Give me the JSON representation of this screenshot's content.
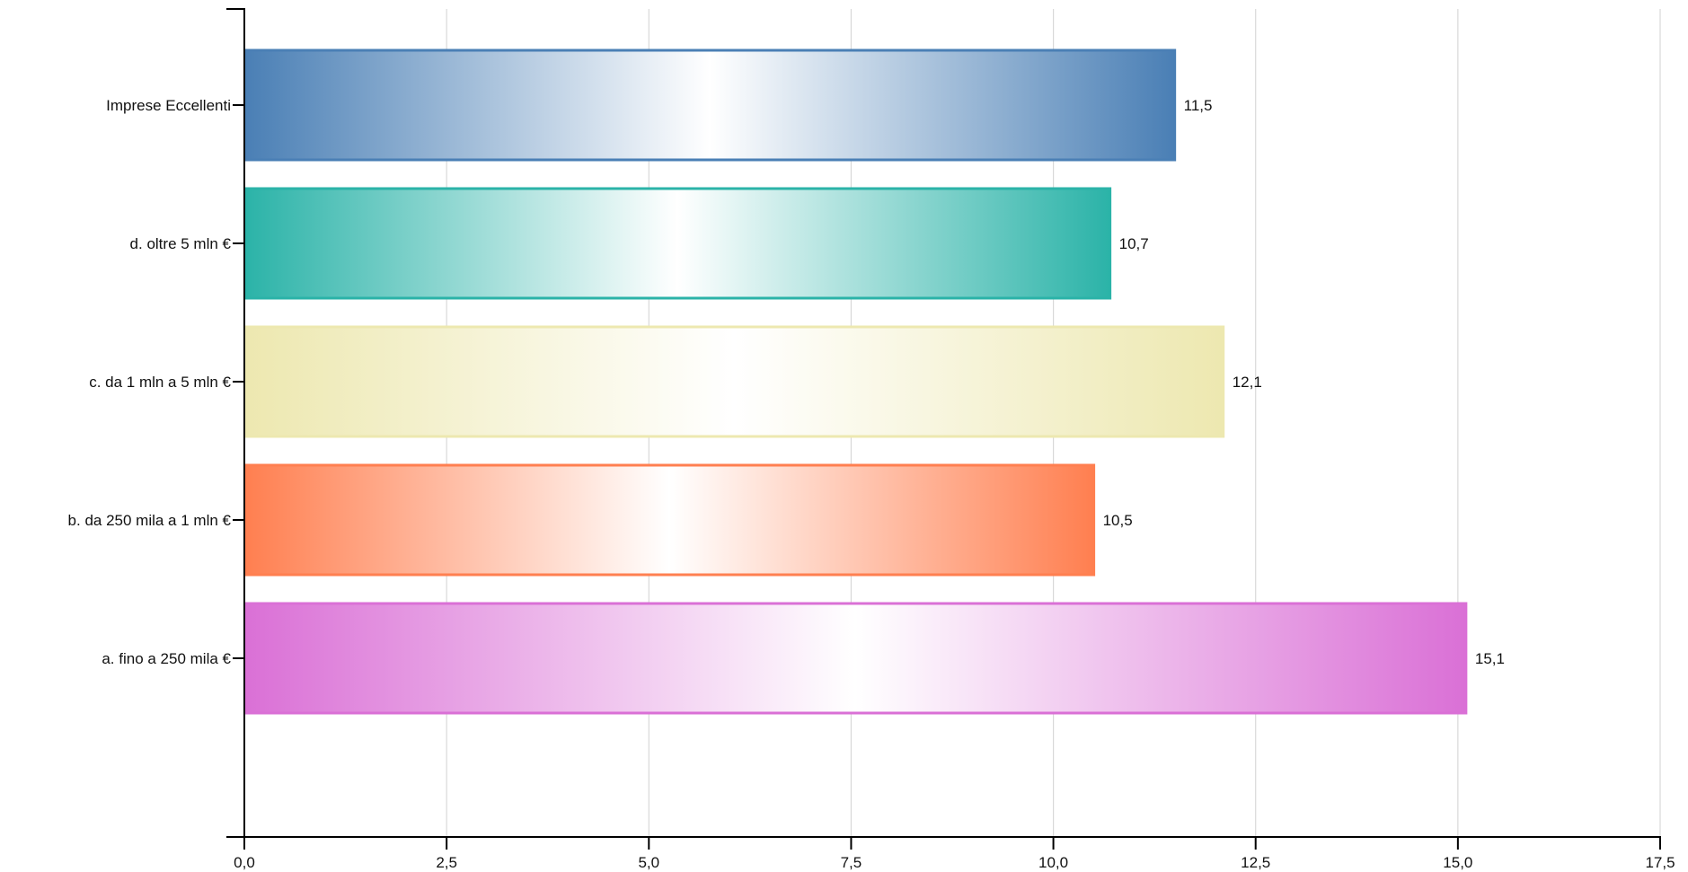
{
  "chart_data": {
    "type": "bar",
    "orientation": "horizontal",
    "categories": [
      "Imprese Eccellenti",
      "d. oltre 5 mln €",
      "c. da 1 mln a 5 mln €",
      "b. da 250 mila a 1 mln €",
      "a. fino a 250 mila €"
    ],
    "values": [
      11.5,
      10.7,
      12.1,
      10.5,
      15.1
    ],
    "value_labels": [
      "11,5",
      "10,7",
      "12,1",
      "10,5",
      "15,1"
    ],
    "colors": [
      "#4a7fb5",
      "#2bb3a8",
      "#ede8b0",
      "#ff7f50",
      "#da70d6"
    ],
    "xlim": [
      0,
      17.5
    ],
    "xticks": [
      0,
      2.5,
      5,
      7.5,
      10,
      12.5,
      15,
      17.5
    ],
    "xtick_labels": [
      "0,0",
      "2,5",
      "5,0",
      "7,5",
      "10,0",
      "12,5",
      "15,0",
      "17,5"
    ],
    "grid": "vertical",
    "title": "",
    "xlabel": "",
    "ylabel": ""
  }
}
